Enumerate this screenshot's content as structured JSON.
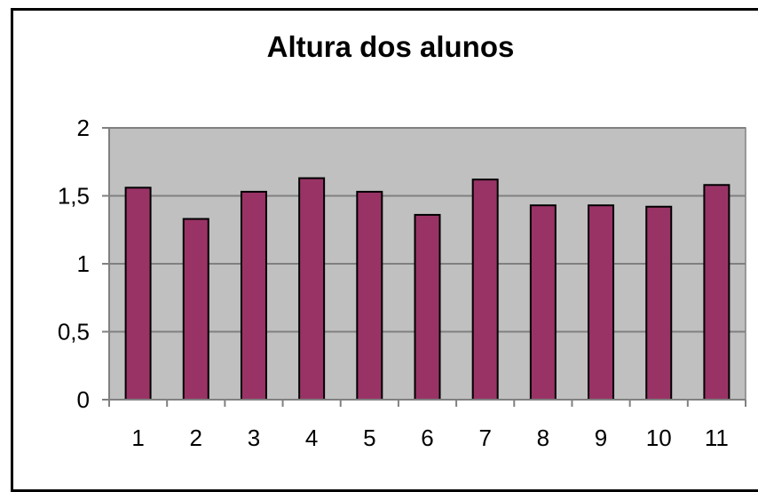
{
  "chart_data": {
    "type": "bar",
    "title": "Altura dos alunos",
    "xlabel": "",
    "ylabel": "",
    "categories": [
      "1",
      "2",
      "3",
      "4",
      "5",
      "6",
      "7",
      "8",
      "9",
      "10",
      "11"
    ],
    "values": [
      1.56,
      1.33,
      1.53,
      1.63,
      1.53,
      1.36,
      1.62,
      1.43,
      1.43,
      1.42,
      1.58
    ],
    "ylim": [
      0,
      2
    ],
    "yticks": [
      0,
      0.5,
      1,
      1.5,
      2
    ],
    "ytick_labels": [
      "0",
      "0,5",
      "1",
      "1,5",
      "2"
    ],
    "grid": true,
    "legend": "none",
    "colors": {
      "bar": "#993366",
      "plot_background": "#c0c0c0",
      "gridline": "#808080",
      "outline": "#000000"
    }
  }
}
